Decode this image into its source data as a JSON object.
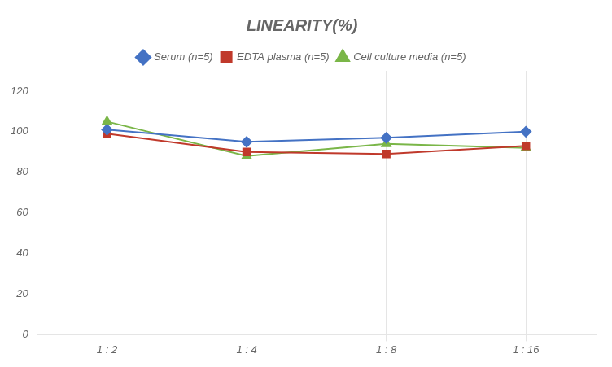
{
  "chart_data": {
    "type": "line",
    "title": "LINEARITY(%)",
    "categories": [
      "1 : 2",
      "1 : 4",
      "1 : 8",
      "1 : 16"
    ],
    "series": [
      {
        "name": "Serum (n=5)",
        "color": "#4472C4",
        "marker": "diamond",
        "values": [
          101,
          95,
          97,
          100
        ]
      },
      {
        "name": "EDTA plasma (n=5)",
        "color": "#C0392B",
        "marker": "square",
        "values": [
          99,
          90,
          89,
          93
        ]
      },
      {
        "name": "Cell culture media (n=5)",
        "color": "#7AB648",
        "marker": "triangle",
        "values": [
          105,
          88,
          94,
          92
        ]
      }
    ],
    "ylim": [
      0,
      130
    ],
    "yticks": [
      0,
      20,
      40,
      60,
      80,
      100,
      120
    ],
    "grid": "x",
    "legend": "top"
  }
}
